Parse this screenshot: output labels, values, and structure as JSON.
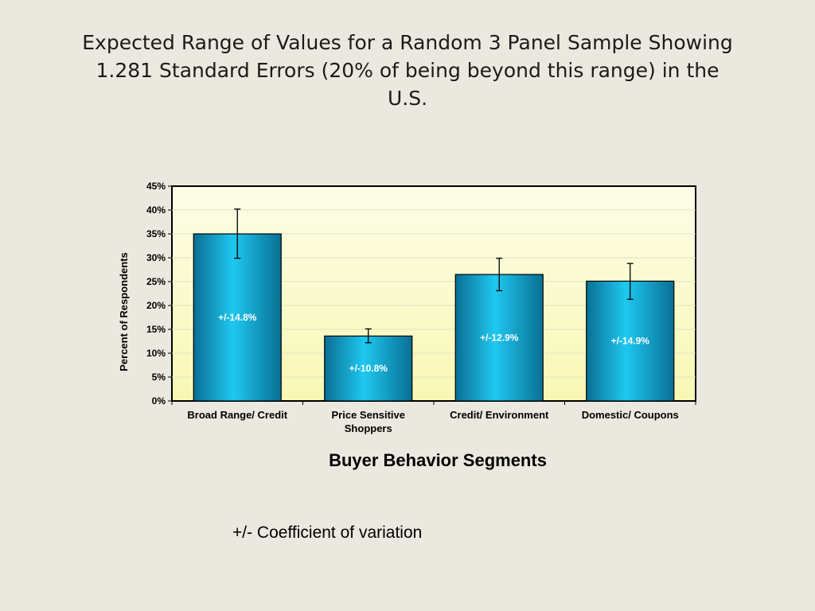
{
  "slide": {
    "title_lines": [
      "Expected Range of Values for a Random 3 Panel Sample Showing",
      "1.281 Standard Errors (20% of being beyond this range) in the",
      "U.S."
    ],
    "footnote": "+/- Coefficient of variation"
  },
  "colors": {
    "background": "#ebe8df",
    "plot_top": "#fdfde8",
    "plot_bottom": "#f8f8b4",
    "bar_light": "#1ec8f0",
    "bar_dark": "#0a6f94"
  },
  "chart_data": {
    "type": "bar",
    "categories": [
      [
        "Broad Range/ Credit"
      ],
      [
        "Price Sensitive",
        "Shoppers"
      ],
      [
        "Credit/ Environment"
      ],
      [
        "Domestic/ Coupons"
      ]
    ],
    "values": [
      35,
      13.6,
      26.5,
      25.1
    ],
    "error_low": [
      29.9,
      12.2,
      23.1,
      21.3
    ],
    "error_high": [
      40.2,
      15.1,
      29.9,
      28.8
    ],
    "data_labels": [
      "+/-14.8%",
      "+/-10.8%",
      "+/-12.9%",
      "+/-14.9%"
    ],
    "xlabel": "Buyer Behavior Segments",
    "ylabel": "Percent of Respondents",
    "ylim": [
      0,
      45
    ],
    "yticks": [
      0,
      5,
      10,
      15,
      20,
      25,
      30,
      35,
      40,
      45
    ],
    "ytick_labels": [
      "0%",
      "5%",
      "10%",
      "15%",
      "20%",
      "25%",
      "30%",
      "35%",
      "40%",
      "45%"
    ],
    "grid": true,
    "legend": "none"
  }
}
